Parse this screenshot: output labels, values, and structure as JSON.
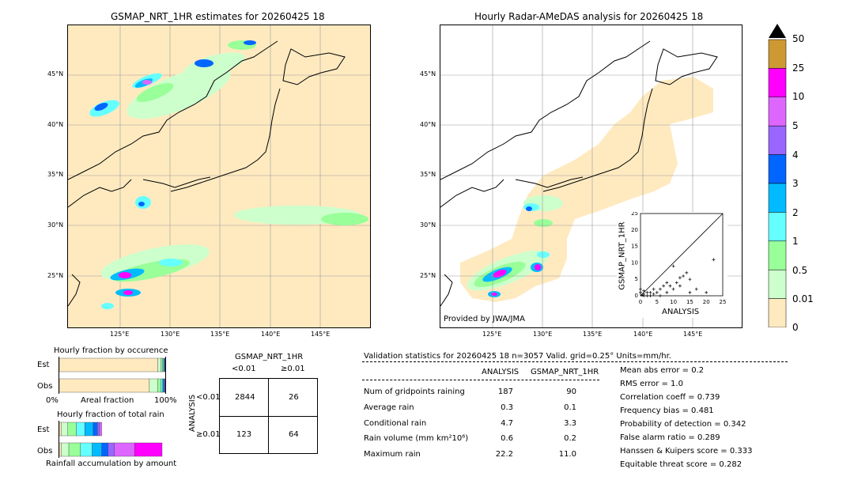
{
  "left_map": {
    "title": "GSMAP_NRT_1HR estimates for 20260425 18",
    "lat_labels": [
      "45°N",
      "40°N",
      "35°N",
      "30°N",
      "25°N"
    ],
    "lon_labels": [
      "125°E",
      "130°E",
      "135°E",
      "140°E",
      "145°E"
    ]
  },
  "right_map": {
    "title": "Hourly Radar-AMeDAS analysis for 20260425 18",
    "lat_labels": [
      "45°N",
      "40°N",
      "35°N",
      "30°N",
      "25°N"
    ],
    "lon_labels": [
      "125°E",
      "130°E",
      "135°E",
      "140°E",
      "145°E"
    ],
    "credit": "Provided by JWA/JMA",
    "scatter": {
      "ylabel": "GSMAP_NRT_1HR",
      "xlabel": "ANALYSIS",
      "ticks": [
        "0",
        "5",
        "10",
        "15",
        "20",
        "25"
      ]
    }
  },
  "colorbar": {
    "labels": [
      "50",
      "25",
      "10",
      "5",
      "4",
      "3",
      "2",
      "1",
      "0.5",
      "0.01",
      "0"
    ],
    "colors": [
      "#cc9933",
      "#ff00ff",
      "#dd66ff",
      "#9966ff",
      "#0066ff",
      "#00bbff",
      "#66ffff",
      "#99ff99",
      "#ccffcc",
      "#ffeac0"
    ]
  },
  "occurrence": {
    "title": "Hourly fraction by occurence",
    "row_est": "Est",
    "row_obs": "Obs",
    "axis_left": "0%",
    "axis_mid": "Areal fraction",
    "axis_right": "100%"
  },
  "total_rain": {
    "title": "Hourly fraction of total rain",
    "row_est": "Est",
    "row_obs": "Obs",
    "footer": "Rainfall accumulation by amount"
  },
  "contingency": {
    "title": "GSMAP_NRT_1HR",
    "col1": "<0.01",
    "col2": "≥0.01",
    "row_axis": "ANALYSIS",
    "row1": "<0.01",
    "row2": "≥0.01",
    "cells": [
      "2844",
      "26",
      "123",
      "64"
    ]
  },
  "validation": {
    "header": "Validation statistics for 20260425 18  n=3057 Valid. grid=0.25° Units=mm/hr.",
    "col_analysis": "ANALYSIS",
    "col_gsmap": "GSMAP_NRT_1HR",
    "rows": [
      {
        "label": "Num of gridpoints raining",
        "a": "187",
        "g": "90"
      },
      {
        "label": "Average rain",
        "a": "0.3",
        "g": "0.1"
      },
      {
        "label": "Conditional rain",
        "a": "4.7",
        "g": "3.3"
      },
      {
        "label": "Rain volume (mm km²10⁶)",
        "a": "0.6",
        "g": "0.2"
      },
      {
        "label": "Maximum rain",
        "a": "22.2",
        "g": "11.0"
      }
    ],
    "scores": [
      "Mean abs error =    0.2",
      "RMS error =    1.0",
      "Correlation coeff =  0.739",
      "Frequency bias =  0.481",
      "Probability of detection =  0.342",
      "False alarm ratio =  0.289",
      "Hanssen & Kuipers score =  0.333",
      "Equitable threat score =  0.282"
    ]
  },
  "chart_data": [
    {
      "type": "scatter",
      "title": "",
      "xlabel": "ANALYSIS",
      "ylabel": "GSMAP_NRT_1HR",
      "xlim": [
        0,
        25
      ],
      "ylim": [
        0,
        25
      ],
      "points": [
        [
          22.2,
          11.0
        ],
        [
          10,
          9
        ],
        [
          12,
          5.5
        ],
        [
          13,
          6
        ],
        [
          14,
          7
        ],
        [
          15,
          5
        ],
        [
          8,
          4
        ],
        [
          9,
          3
        ],
        [
          10,
          2
        ],
        [
          11,
          4
        ],
        [
          12,
          3
        ],
        [
          15,
          1
        ],
        [
          17,
          2
        ],
        [
          20,
          1
        ],
        [
          6,
          2
        ],
        [
          7,
          3
        ],
        [
          5,
          1
        ],
        [
          4,
          2
        ],
        [
          3,
          1
        ],
        [
          2,
          1
        ],
        [
          1,
          0.5
        ],
        [
          0.5,
          0.2
        ],
        [
          2,
          0
        ],
        [
          3,
          0
        ],
        [
          4,
          0.5
        ],
        [
          6,
          0
        ],
        [
          8,
          1
        ],
        [
          1,
          1.5
        ],
        [
          0,
          1
        ],
        [
          0,
          2
        ],
        [
          1,
          0
        ]
      ]
    },
    {
      "type": "bar",
      "title": "Hourly fraction by occurence",
      "categories": [
        "Est",
        "Obs"
      ],
      "series_fractions": {
        "Est": [
          0.93,
          0.03,
          0.015,
          0.01,
          0.007,
          0.005,
          0.003
        ],
        "Obs": [
          0.85,
          0.08,
          0.03,
          0.015,
          0.01,
          0.008,
          0.007
        ]
      }
    },
    {
      "type": "bar",
      "title": "Hourly fraction of total rain",
      "categories": [
        "Est",
        "Obs"
      ],
      "series_fractions": {
        "Est": [
          0.02,
          0.06,
          0.08,
          0.08,
          0.08,
          0.04,
          0.02,
          0.02
        ],
        "Obs": [
          0.02,
          0.07,
          0.11,
          0.11,
          0.09,
          0.06,
          0.06,
          0.19,
          0.26
        ]
      }
    }
  ]
}
